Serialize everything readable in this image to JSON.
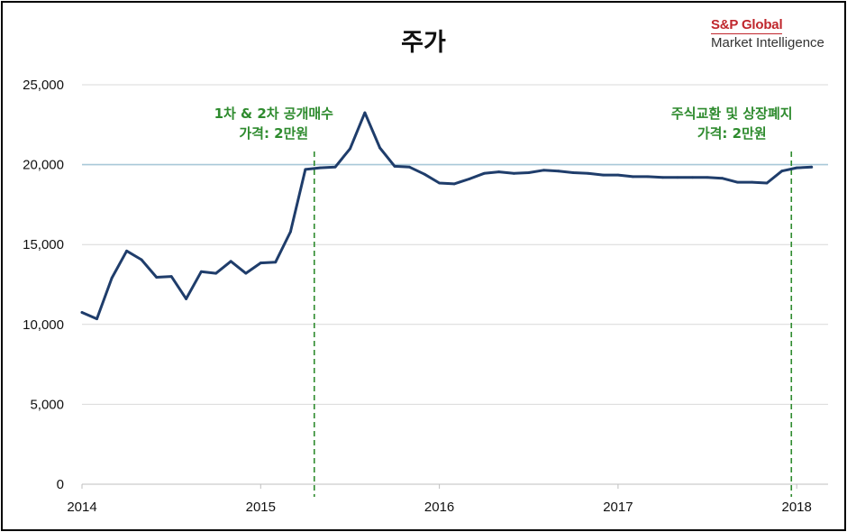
{
  "logo": {
    "line1": "S&P Global",
    "line2": "Market Intelligence"
  },
  "chart_data": {
    "type": "line",
    "title": "주가",
    "xlabel": "",
    "ylabel": "",
    "ylim": [
      0,
      25000
    ],
    "yticks": [
      0,
      5000,
      10000,
      15000,
      20000,
      25000
    ],
    "ytick_labels": [
      "0",
      "5,000",
      "10,000",
      "15,000",
      "20,000",
      "25,000"
    ],
    "xlim": [
      2014,
      2018.2
    ],
    "xticks": [
      2014,
      2015,
      2016,
      2017,
      2018
    ],
    "xtick_labels": [
      "2014",
      "2015",
      "2016",
      "2017",
      "2018"
    ],
    "grid": "horizontal",
    "legend": "none",
    "series_color": "#1f3d6b",
    "reference_line": {
      "y": 20000,
      "color": "#a8c8d8"
    },
    "series": [
      {
        "x": [
          2014.0,
          2014.083,
          2014.167,
          2014.25,
          2014.333,
          2014.417,
          2014.5,
          2014.583,
          2014.667,
          2014.75,
          2014.833,
          2014.917,
          2015.0,
          2015.083,
          2015.167,
          2015.25,
          2015.333,
          2015.417,
          2015.5,
          2015.583,
          2015.667,
          2015.75,
          2015.833,
          2015.917,
          2016.0,
          2016.083,
          2016.167,
          2016.25,
          2016.333,
          2016.417,
          2016.5,
          2016.583,
          2016.667,
          2016.75,
          2016.833,
          2016.917,
          2017.0,
          2017.083,
          2017.167,
          2017.25,
          2017.333,
          2017.417,
          2017.5,
          2017.583,
          2017.667,
          2017.75,
          2017.833,
          2017.917,
          2018.0,
          2018.083
        ],
        "values": [
          10750,
          10350,
          12900,
          14600,
          14050,
          12950,
          13000,
          11600,
          13300,
          13200,
          13950,
          13200,
          13850,
          13900,
          15800,
          19700,
          19800,
          19850,
          21000,
          23250,
          21050,
          19900,
          19850,
          19400,
          18850,
          18800,
          19100,
          19450,
          19550,
          19450,
          19500,
          19650,
          19600,
          19500,
          19450,
          19350,
          19350,
          19250,
          19250,
          19200,
          19200,
          19200,
          19200,
          19150,
          18900,
          18900,
          18850,
          19600,
          19800,
          19850
        ]
      }
    ],
    "annotations": [
      {
        "x": 2015.3,
        "lines": [
          "1차 & 2차 공개매수",
          "가격: 2만원"
        ],
        "color": "#2e8b2e",
        "style": "dashed"
      },
      {
        "x": 2017.97,
        "lines": [
          "주식교환 및 상장폐지",
          "가격: 2만원"
        ],
        "color": "#2e8b2e",
        "style": "dashed"
      }
    ]
  }
}
